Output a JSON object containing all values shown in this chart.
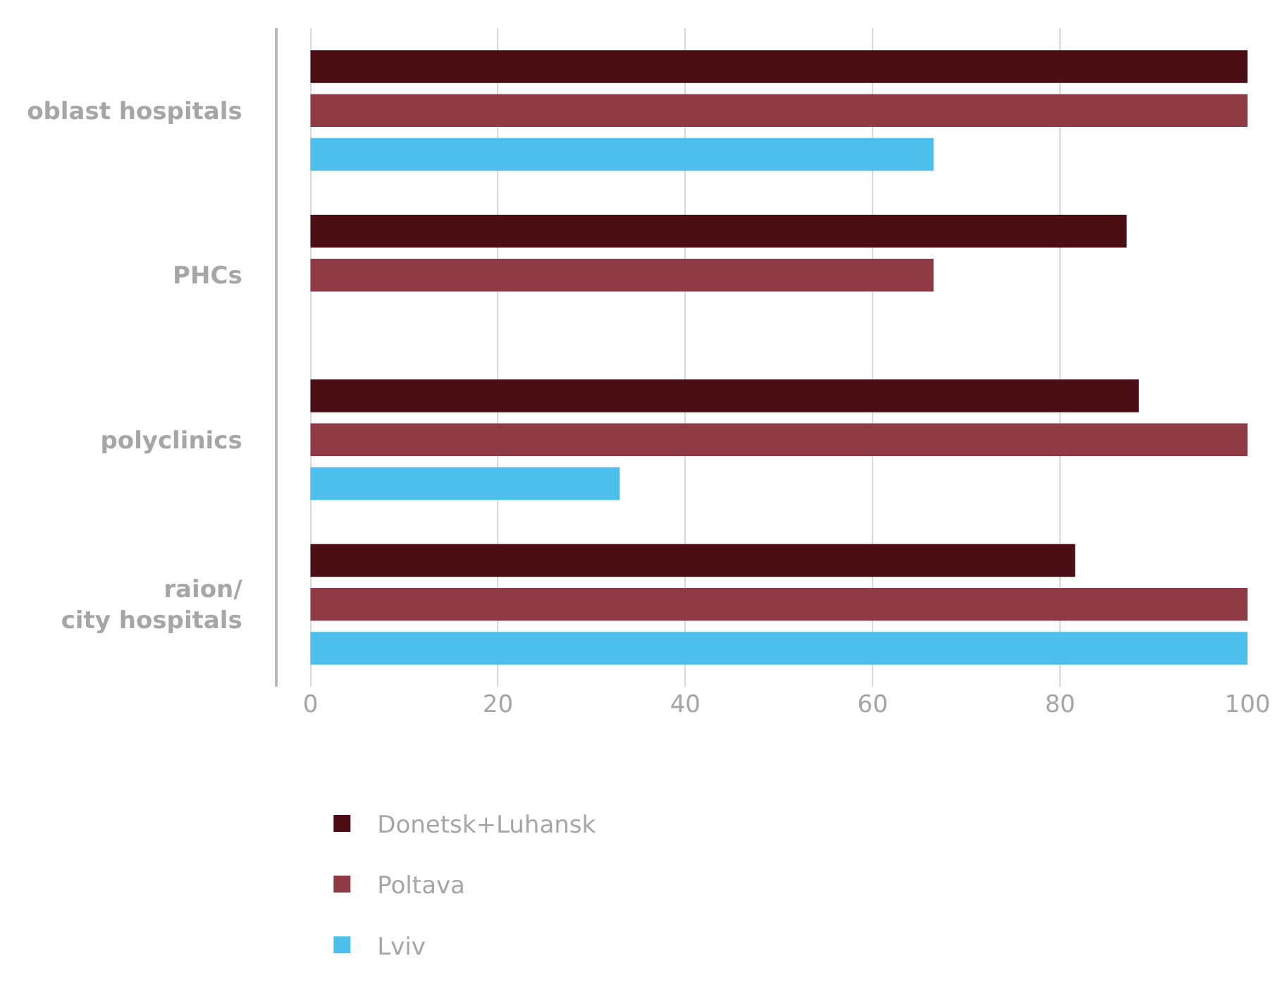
{
  "chart_data": {
    "type": "bar",
    "orientation": "horizontal",
    "categories": [
      "oblast hospitals",
      "PHCs",
      "polyclinics",
      "raion/\ncity hospitals"
    ],
    "series": [
      {
        "name": "Donetsk+Luhansk",
        "color": "#4a0e14",
        "values": [
          100,
          87.1,
          88.4,
          81.6
        ]
      },
      {
        "name": "Poltava",
        "color": "#8f3a44",
        "values": [
          100,
          66.5,
          100,
          100
        ]
      },
      {
        "name": "Lviv",
        "color": "#4dbfed",
        "values": [
          66.5,
          null,
          33,
          100
        ]
      }
    ],
    "xlim": [
      -3.5,
      100
    ],
    "xticks": [
      0,
      20,
      40,
      60,
      80,
      100
    ],
    "grid": "x",
    "legend": "bottom"
  }
}
